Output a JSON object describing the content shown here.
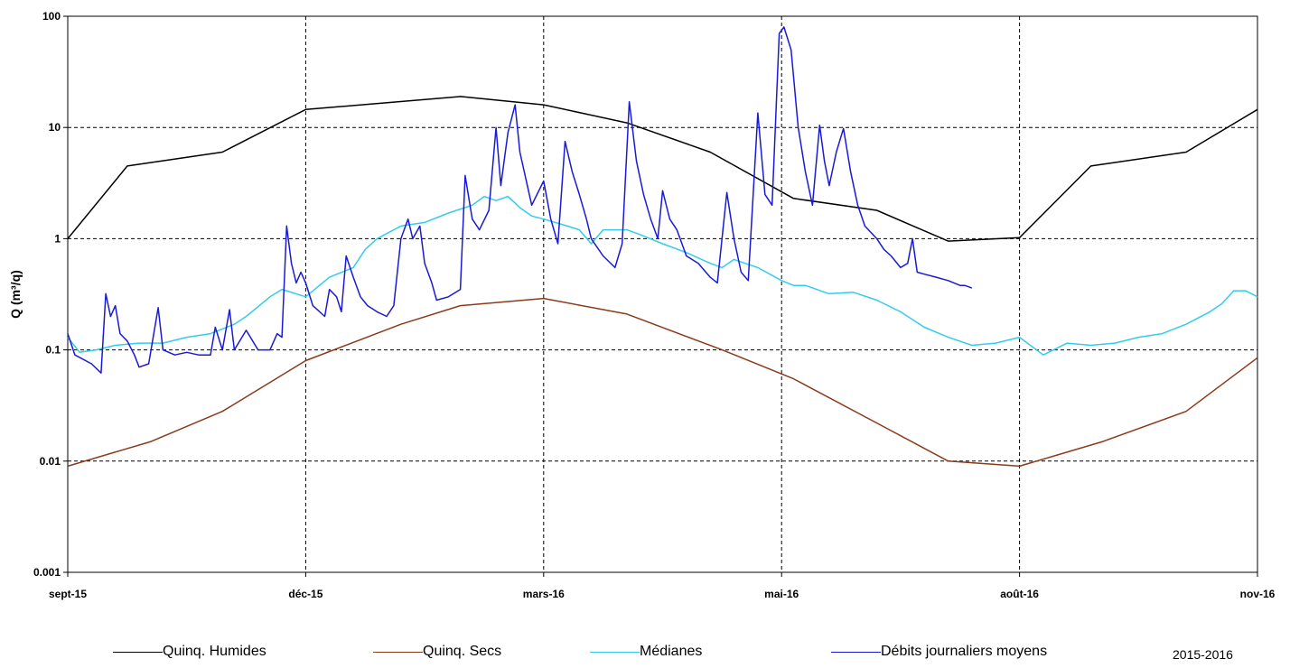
{
  "chart_data": {
    "type": "line",
    "ylabel": "Q (m³/q)",
    "yscale": "log",
    "ylim": [
      0.001,
      100
    ],
    "y_ticks": [
      "0.001",
      "0.01",
      "0.1",
      "1",
      "10",
      "100"
    ],
    "x_ticks": [
      "sept-15",
      "déc-15",
      "mars-16",
      "mai-16",
      "août-16",
      "nov-16"
    ],
    "grid": true,
    "legend_position": "bottom",
    "season_label": "2015-2016",
    "series": [
      {
        "name": "Quinq. Humides",
        "color": "#000000",
        "points": [
          [
            0,
            1.0
          ],
          [
            2.5,
            4.5
          ],
          [
            6.5,
            6.0
          ],
          [
            10,
            14.5
          ],
          [
            16.5,
            19
          ],
          [
            20,
            16
          ],
          [
            23.5,
            11
          ],
          [
            27,
            6
          ],
          [
            30.5,
            2.3
          ],
          [
            34,
            1.8
          ],
          [
            37,
            0.95
          ],
          [
            40,
            1.02
          ],
          [
            43,
            4.5
          ],
          [
            47,
            6.0
          ],
          [
            50,
            14.5
          ]
        ]
      },
      {
        "name": "Quinq. Secs",
        "color": "#8b3a1a",
        "points": [
          [
            0,
            0.009
          ],
          [
            3.5,
            0.015
          ],
          [
            6.5,
            0.028
          ],
          [
            10,
            0.08
          ],
          [
            14,
            0.17
          ],
          [
            16.5,
            0.25
          ],
          [
            20,
            0.29
          ],
          [
            23.5,
            0.21
          ],
          [
            27.5,
            0.1
          ],
          [
            30.5,
            0.055
          ],
          [
            34,
            0.022
          ],
          [
            37,
            0.01
          ],
          [
            40,
            0.009
          ],
          [
            43.5,
            0.015
          ],
          [
            47,
            0.028
          ],
          [
            50,
            0.085
          ]
        ]
      },
      {
        "name": "Médianes",
        "color": "#33ccee",
        "points": [
          [
            0,
            0.13
          ],
          [
            0.5,
            0.095
          ],
          [
            1.2,
            0.1
          ],
          [
            2,
            0.11
          ],
          [
            3,
            0.115
          ],
          [
            4,
            0.115
          ],
          [
            5,
            0.13
          ],
          [
            6,
            0.14
          ],
          [
            7,
            0.17
          ],
          [
            7.5,
            0.2
          ],
          [
            8.5,
            0.3
          ],
          [
            9,
            0.35
          ],
          [
            10,
            0.3
          ],
          [
            11,
            0.45
          ],
          [
            12,
            0.55
          ],
          [
            12.5,
            0.8
          ],
          [
            13,
            1.0
          ],
          [
            14,
            1.3
          ],
          [
            15,
            1.4
          ],
          [
            16,
            1.7
          ],
          [
            17,
            2.0
          ],
          [
            17.5,
            2.4
          ],
          [
            18,
            2.2
          ],
          [
            18.5,
            2.4
          ],
          [
            19,
            1.9
          ],
          [
            19.5,
            1.6
          ],
          [
            20,
            1.5
          ],
          [
            21,
            1.3
          ],
          [
            21.5,
            1.2
          ],
          [
            22,
            0.9
          ],
          [
            22.5,
            1.2
          ],
          [
            23.5,
            1.2
          ],
          [
            24,
            1.1
          ],
          [
            25,
            0.9
          ],
          [
            26,
            0.75
          ],
          [
            27,
            0.6
          ],
          [
            27.5,
            0.55
          ],
          [
            28,
            0.65
          ],
          [
            29,
            0.55
          ],
          [
            30,
            0.42
          ],
          [
            30.5,
            0.38
          ],
          [
            31,
            0.38
          ],
          [
            32,
            0.32
          ],
          [
            33,
            0.33
          ],
          [
            34,
            0.28
          ],
          [
            35,
            0.22
          ],
          [
            36,
            0.16
          ],
          [
            37,
            0.13
          ],
          [
            38,
            0.11
          ],
          [
            39,
            0.115
          ],
          [
            40,
            0.13
          ],
          [
            41,
            0.09
          ],
          [
            42,
            0.115
          ],
          [
            43,
            0.11
          ],
          [
            44,
            0.115
          ],
          [
            45,
            0.13
          ],
          [
            46,
            0.14
          ],
          [
            47,
            0.17
          ],
          [
            48,
            0.22
          ],
          [
            48.5,
            0.26
          ],
          [
            49,
            0.34
          ],
          [
            49.5,
            0.34
          ],
          [
            50,
            0.3
          ]
        ]
      },
      {
        "name": "Débits journaliers moyens",
        "color": "#1a1ad6",
        "points": [
          [
            0,
            0.14
          ],
          [
            0.3,
            0.09
          ],
          [
            1,
            0.075
          ],
          [
            1.4,
            0.062
          ],
          [
            1.6,
            0.32
          ],
          [
            1.8,
            0.2
          ],
          [
            2,
            0.25
          ],
          [
            2.2,
            0.14
          ],
          [
            2.5,
            0.12
          ],
          [
            2.8,
            0.09
          ],
          [
            3,
            0.07
          ],
          [
            3.4,
            0.075
          ],
          [
            3.8,
            0.24
          ],
          [
            4,
            0.1
          ],
          [
            4.5,
            0.09
          ],
          [
            5,
            0.095
          ],
          [
            5.5,
            0.09
          ],
          [
            6,
            0.09
          ],
          [
            6.2,
            0.16
          ],
          [
            6.5,
            0.1
          ],
          [
            6.8,
            0.23
          ],
          [
            7,
            0.1
          ],
          [
            7.5,
            0.15
          ],
          [
            8,
            0.1
          ],
          [
            8.5,
            0.1
          ],
          [
            8.8,
            0.14
          ],
          [
            9,
            0.13
          ],
          [
            9.2,
            1.3
          ],
          [
            9.4,
            0.6
          ],
          [
            9.6,
            0.4
          ],
          [
            9.8,
            0.5
          ],
          [
            10,
            0.4
          ],
          [
            10.3,
            0.25
          ],
          [
            10.8,
            0.2
          ],
          [
            11,
            0.35
          ],
          [
            11.3,
            0.3
          ],
          [
            11.5,
            0.22
          ],
          [
            11.7,
            0.7
          ],
          [
            12,
            0.45
          ],
          [
            12.3,
            0.3
          ],
          [
            12.6,
            0.25
          ],
          [
            13,
            0.22
          ],
          [
            13.4,
            0.2
          ],
          [
            13.7,
            0.25
          ],
          [
            14,
            1.0
          ],
          [
            14.3,
            1.5
          ],
          [
            14.5,
            1.0
          ],
          [
            14.8,
            1.3
          ],
          [
            15,
            0.6
          ],
          [
            15.3,
            0.4
          ],
          [
            15.5,
            0.28
          ],
          [
            16,
            0.3
          ],
          [
            16.5,
            0.35
          ],
          [
            16.7,
            3.7
          ],
          [
            17,
            1.5
          ],
          [
            17.3,
            1.2
          ],
          [
            17.7,
            1.8
          ],
          [
            18,
            10
          ],
          [
            18.2,
            3
          ],
          [
            18.5,
            9
          ],
          [
            18.8,
            16
          ],
          [
            19,
            6
          ],
          [
            19.5,
            2
          ],
          [
            20,
            3.3
          ],
          [
            20.3,
            1.5
          ],
          [
            20.6,
            0.9
          ],
          [
            20.9,
            7.5
          ],
          [
            21.2,
            4
          ],
          [
            21.5,
            2.5
          ],
          [
            21.8,
            1.5
          ],
          [
            22,
            1.0
          ],
          [
            22.5,
            0.7
          ],
          [
            23,
            0.55
          ],
          [
            23.3,
            0.9
          ],
          [
            23.6,
            17
          ],
          [
            23.9,
            5
          ],
          [
            24.2,
            2.5
          ],
          [
            24.5,
            1.5
          ],
          [
            24.8,
            1.0
          ],
          [
            25,
            2.7
          ],
          [
            25.3,
            1.5
          ],
          [
            25.6,
            1.2
          ],
          [
            26,
            0.7
          ],
          [
            26.5,
            0.6
          ],
          [
            27,
            0.45
          ],
          [
            27.3,
            0.4
          ],
          [
            27.7,
            2.6
          ],
          [
            28,
            1.0
          ],
          [
            28.3,
            0.5
          ],
          [
            28.6,
            0.42
          ],
          [
            29,
            13.5
          ],
          [
            29.3,
            2.5
          ],
          [
            29.6,
            2.0
          ],
          [
            29.9,
            70
          ],
          [
            30.1,
            80
          ],
          [
            30.4,
            50
          ],
          [
            30.7,
            10
          ],
          [
            31,
            4
          ],
          [
            31.3,
            2.0
          ],
          [
            31.6,
            10.5
          ],
          [
            31.8,
            5
          ],
          [
            32,
            3
          ],
          [
            32.3,
            6
          ],
          [
            32.6,
            9.8
          ],
          [
            32.9,
            4
          ],
          [
            33.2,
            2
          ],
          [
            33.5,
            1.3
          ],
          [
            34,
            1.0
          ],
          [
            34.3,
            0.8
          ],
          [
            34.6,
            0.7
          ],
          [
            35,
            0.55
          ],
          [
            35.3,
            0.6
          ],
          [
            35.5,
            1.0
          ],
          [
            35.7,
            0.5
          ],
          [
            36,
            0.48
          ],
          [
            36.5,
            0.45
          ],
          [
            37,
            0.42
          ],
          [
            37.5,
            0.38
          ],
          [
            37.7,
            0.38
          ],
          [
            38,
            0.36
          ]
        ]
      }
    ]
  }
}
